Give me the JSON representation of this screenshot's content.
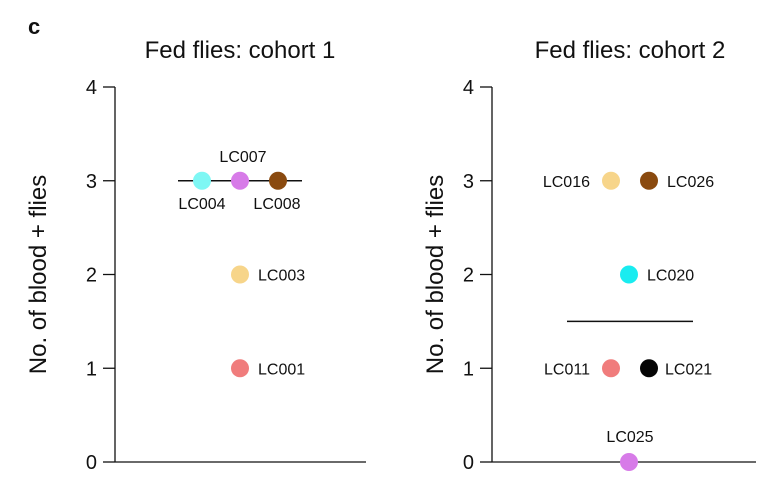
{
  "panel_letter": "c",
  "chart_data": [
    {
      "type": "scatter",
      "title": "Fed flies: cohort 1",
      "ylabel": "No. of blood + flies",
      "xlabel": "",
      "ylim": [
        0,
        4
      ],
      "yticks": [
        "0",
        "1",
        "2",
        "3",
        "4"
      ],
      "median": 3,
      "grid": false,
      "points": [
        {
          "label": "LC004",
          "y": 3,
          "color": "#7ef7f4",
          "order": 0
        },
        {
          "label": "LC007",
          "y": 3,
          "color": "#d77be8",
          "order": 1
        },
        {
          "label": "LC008",
          "y": 3,
          "color": "#8a4a0f",
          "order": 2
        },
        {
          "label": "LC003",
          "y": 2,
          "color": "#f7d58a",
          "order": 1
        },
        {
          "label": "LC001",
          "y": 1,
          "color": "#f07c7c",
          "order": 1
        }
      ]
    },
    {
      "type": "scatter",
      "title": "Fed flies: cohort 2",
      "ylabel": "No. of blood + flies",
      "xlabel": "",
      "ylim": [
        0,
        4
      ],
      "yticks": [
        "0",
        "1",
        "2",
        "3",
        "4"
      ],
      "median": 1.5,
      "grid": false,
      "points": [
        {
          "label": "LC016",
          "y": 3,
          "color": "#f7d58a",
          "order": 0
        },
        {
          "label": "LC026",
          "y": 3,
          "color": "#8a4a0f",
          "order": 2
        },
        {
          "label": "LC020",
          "y": 2,
          "color": "#19ecf0",
          "order": 1
        },
        {
          "label": "LC011",
          "y": 1,
          "color": "#f07c7c",
          "order": 0
        },
        {
          "label": "LC021",
          "y": 1,
          "color": "#050505",
          "order": 2
        },
        {
          "label": "LC025",
          "y": 0,
          "color": "#d77be8",
          "order": 1
        }
      ]
    }
  ]
}
